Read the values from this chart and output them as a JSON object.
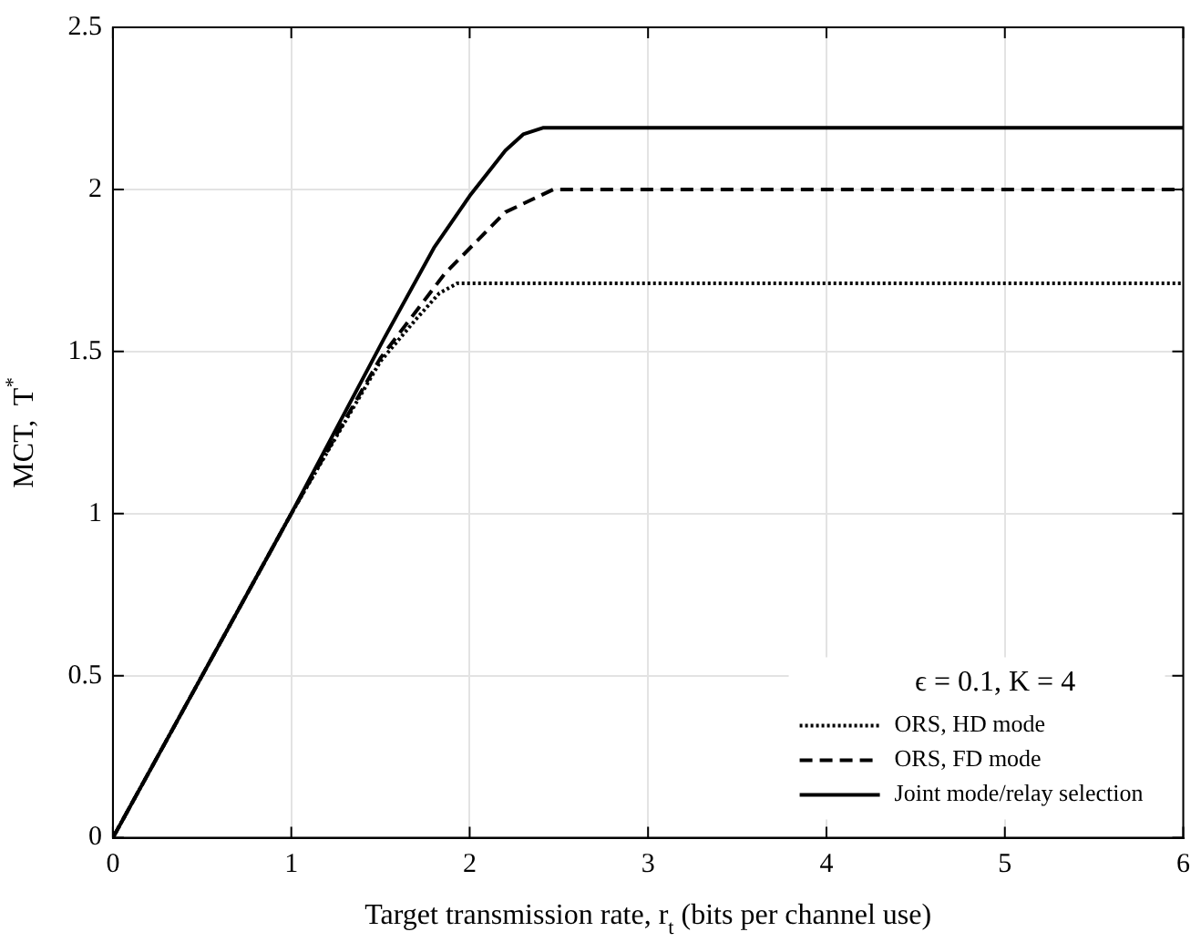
{
  "chart_data": {
    "type": "line",
    "xlabel": "Target transmission rate, r$_{t}$ (bits per channel use)",
    "ylabel": "MCT,  T$^{*}$",
    "legend_title": "ϵ = 0.1, K = 4",
    "xlim": [
      0,
      6
    ],
    "xticks": [
      0,
      1,
      2,
      3,
      4,
      5,
      6
    ],
    "ylim": [
      0,
      2.5
    ],
    "yticks": [
      0,
      0.5,
      1,
      1.5,
      2,
      2.5
    ],
    "grid": true,
    "legend": "bottom right",
    "marker": "none",
    "series": [
      {
        "name": "ORS, HD mode",
        "color": "#000000",
        "line_style": "dotted",
        "x": [
          0,
          1,
          1.5,
          1.7,
          1.83,
          1.93,
          6
        ],
        "values": [
          0,
          1,
          1.47,
          1.6,
          1.68,
          1.71,
          1.71
        ]
      },
      {
        "name": "ORS, FD mode",
        "color": "#000000",
        "line_style": "dashed",
        "x": [
          0,
          1,
          1.5,
          1.86,
          2.2,
          2.47,
          6
        ],
        "values": [
          0,
          1,
          1.48,
          1.74,
          1.93,
          2,
          2
        ]
      },
      {
        "name": "Joint mode/relay selection",
        "color": "#000000",
        "line_style": "solid",
        "x": [
          0,
          1,
          1.52,
          1.8,
          2,
          2.2,
          2.3,
          2.41,
          6
        ],
        "values": [
          0,
          1,
          1.54,
          1.82,
          1.98,
          2.12,
          2.17,
          2.19,
          2.19
        ]
      }
    ]
  }
}
